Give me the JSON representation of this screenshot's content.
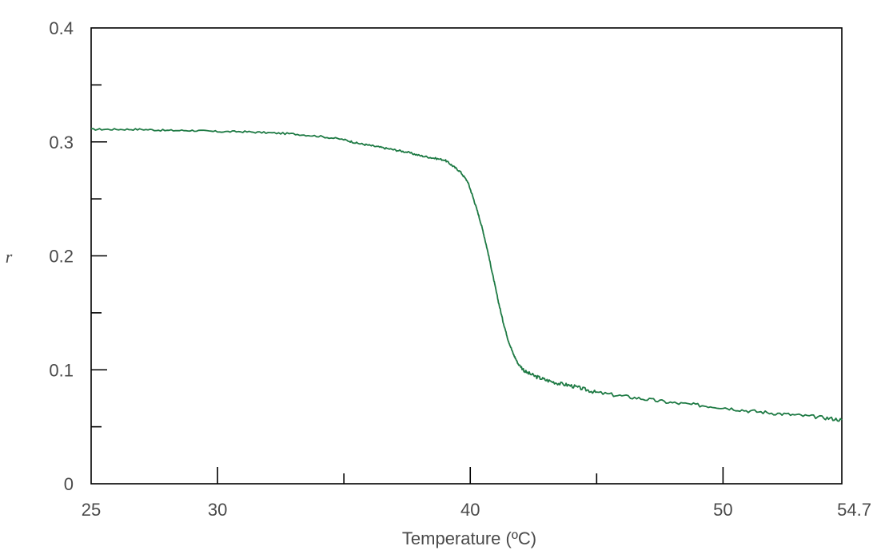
{
  "chart_data": {
    "type": "line",
    "title": "",
    "xlabel": "Temperature (ºC)",
    "ylabel": "r",
    "xlim": [
      25,
      54.7
    ],
    "ylim": [
      0,
      0.4
    ],
    "x_ticks": [
      25,
      30,
      40,
      50,
      54.7
    ],
    "x_tick_labels": [
      "25",
      "30",
      "40",
      "50",
      "54.7"
    ],
    "x_minor_ticks": [
      35,
      45
    ],
    "y_ticks": [
      0,
      0.1,
      0.2,
      0.3,
      0.4
    ],
    "y_tick_labels": [
      "0",
      "0.1",
      "0.2",
      "0.3",
      "0.4"
    ],
    "y_minor_ticks": [
      0.05,
      0.15,
      0.25,
      0.35
    ],
    "grid": false,
    "legend": "none",
    "series": [
      {
        "color": "#1e7a44",
        "x": [
          25,
          26,
          27,
          28,
          29,
          30,
          31,
          32,
          33,
          34,
          35,
          35.5,
          36,
          36.5,
          37,
          37.5,
          38,
          38.5,
          39,
          39.3,
          39.6,
          39.9,
          40.1,
          40.3,
          40.5,
          40.7,
          40.9,
          41.1,
          41.3,
          41.5,
          41.7,
          41.9,
          42.2,
          42.6,
          43,
          43.5,
          44,
          44.5,
          45,
          46,
          47,
          48,
          49,
          50,
          51,
          52,
          53,
          54,
          54.7
        ],
        "y": [
          0.311,
          0.311,
          0.311,
          0.31,
          0.31,
          0.309,
          0.309,
          0.308,
          0.307,
          0.305,
          0.302,
          0.299,
          0.297,
          0.295,
          0.293,
          0.291,
          0.288,
          0.286,
          0.284,
          0.279,
          0.274,
          0.265,
          0.252,
          0.238,
          0.222,
          0.203,
          0.182,
          0.161,
          0.142,
          0.126,
          0.114,
          0.105,
          0.098,
          0.094,
          0.091,
          0.088,
          0.086,
          0.083,
          0.08,
          0.077,
          0.074,
          0.071,
          0.069,
          0.067,
          0.064,
          0.062,
          0.06,
          0.058,
          0.056
        ]
      }
    ]
  }
}
